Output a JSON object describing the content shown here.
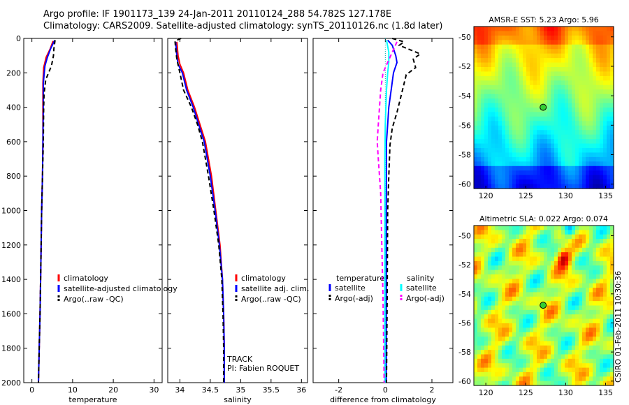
{
  "header": {
    "line1": "Argo profile: IF 1901173_139 24-Jan-2011 20110124_288 54.782S 127.178E",
    "line2": "Climatology: CARS2009. Satellite-adjusted climatology: synTS_20110126.nc (1.8d later)"
  },
  "side_text": "CSIRO 01-Feb-2011 10:30:36",
  "chart_data": [
    {
      "type": "line",
      "xlabel": "temperature",
      "xlim": [
        -2,
        32
      ],
      "xticks": [
        0,
        10,
        20,
        30
      ],
      "ylim": [
        2000,
        0
      ],
      "yticks": [
        0,
        200,
        400,
        600,
        800,
        1000,
        1200,
        1400,
        1600,
        1800,
        2000
      ],
      "legend": [
        {
          "label": "climatology",
          "color": "#ff0000"
        },
        {
          "label": "satellite-adjusted climatology",
          "color": "#0000ff"
        },
        {
          "label": "Argo(..raw -QC)",
          "color": "#000000"
        }
      ],
      "series": [
        {
          "id": "clim",
          "color": "#ff0000",
          "dash": "",
          "points": [
            [
              5.2,
              15
            ],
            [
              4.5,
              60
            ],
            [
              3.5,
              110
            ],
            [
              2.9,
              170
            ],
            [
              2.7,
              260
            ],
            [
              2.7,
              400
            ],
            [
              2.7,
              600
            ],
            [
              2.6,
              800
            ],
            [
              2.4,
              1000
            ],
            [
              2.2,
              1300
            ],
            [
              2.0,
              1600
            ],
            [
              1.8,
              1800
            ],
            [
              1.6,
              2000
            ]
          ]
        },
        {
          "id": "sat",
          "color": "#0000ff",
          "dash": "",
          "points": [
            [
              5.6,
              10
            ],
            [
              4.6,
              60
            ],
            [
              3.8,
              110
            ],
            [
              3.2,
              160
            ],
            [
              2.8,
              260
            ],
            [
              2.8,
              400
            ],
            [
              2.7,
              600
            ],
            [
              2.6,
              800
            ],
            [
              2.4,
              1000
            ],
            [
              2.2,
              1300
            ],
            [
              2.0,
              1600
            ],
            [
              1.8,
              1800
            ],
            [
              1.6,
              2000
            ]
          ]
        },
        {
          "id": "argo",
          "color": "#000000",
          "dash": "6,4",
          "points": [
            [
              5.7,
              10
            ],
            [
              5.4,
              60
            ],
            [
              5.3,
              100
            ],
            [
              4.8,
              160
            ],
            [
              3.4,
              240
            ],
            [
              3.0,
              320
            ],
            [
              2.9,
              400
            ],
            [
              2.8,
              600
            ],
            [
              2.6,
              800
            ],
            [
              2.4,
              1000
            ],
            [
              2.2,
              1300
            ],
            [
              2.0,
              1600
            ],
            [
              1.8,
              1800
            ],
            [
              1.6,
              2000
            ]
          ]
        }
      ]
    },
    {
      "type": "line",
      "xlabel": "salinity",
      "xlim": [
        33.8,
        36.1
      ],
      "xticks": [
        34,
        34.5,
        35,
        35.5,
        36
      ],
      "ylim": [
        2000,
        0
      ],
      "legend": [
        {
          "label": "climatology",
          "color": "#ff0000"
        },
        {
          "label": "satellite adj. clim.",
          "color": "#0000ff"
        },
        {
          "label": "Argo(..raw -QC)",
          "color": "#000000"
        }
      ],
      "annotations": [
        "TRACK",
        "PI: Fabien ROQUET"
      ],
      "series": [
        {
          "id": "clim",
          "color": "#ff0000",
          "dash": "",
          "points": [
            [
              33.95,
              20
            ],
            [
              33.97,
              100
            ],
            [
              34.0,
              150
            ],
            [
              34.06,
              200
            ],
            [
              34.13,
              300
            ],
            [
              34.24,
              400
            ],
            [
              34.33,
              500
            ],
            [
              34.42,
              600
            ],
            [
              34.52,
              800
            ],
            [
              34.59,
              1000
            ],
            [
              34.66,
              1200
            ],
            [
              34.7,
              1400
            ],
            [
              34.72,
              1600
            ],
            [
              34.73,
              1800
            ],
            [
              34.73,
              2000
            ]
          ]
        },
        {
          "id": "sat",
          "color": "#0000ff",
          "dash": "",
          "points": [
            [
              33.93,
              20
            ],
            [
              33.95,
              100
            ],
            [
              33.97,
              150
            ],
            [
              34.04,
              200
            ],
            [
              34.11,
              300
            ],
            [
              34.22,
              400
            ],
            [
              34.31,
              500
            ],
            [
              34.4,
              600
            ],
            [
              34.5,
              800
            ],
            [
              34.58,
              1000
            ],
            [
              34.65,
              1200
            ],
            [
              34.7,
              1400
            ],
            [
              34.72,
              1600
            ],
            [
              34.73,
              1800
            ],
            [
              34.73,
              2000
            ]
          ]
        },
        {
          "id": "argo",
          "color": "#000000",
          "dash": "6,4",
          "points": [
            [
              34.02,
              0
            ],
            [
              33.92,
              15
            ],
            [
              33.93,
              60
            ],
            [
              33.95,
              120
            ],
            [
              34.0,
              200
            ],
            [
              34.06,
              300
            ],
            [
              34.19,
              400
            ],
            [
              34.29,
              500
            ],
            [
              34.37,
              600
            ],
            [
              34.47,
              800
            ],
            [
              34.56,
              1000
            ],
            [
              34.64,
              1200
            ],
            [
              34.69,
              1400
            ],
            [
              34.71,
              1600
            ],
            [
              34.72,
              1800
            ],
            [
              34.72,
              2000
            ]
          ]
        }
      ]
    },
    {
      "type": "line",
      "xlabel": "difference from climatology",
      "xlim": [
        -3.1,
        2.9
      ],
      "xticks": [
        -2,
        0,
        2
      ],
      "ylim": [
        2000,
        0
      ],
      "legend": [
        {
          "label": "temperature",
          "color": "",
          "dash": ""
        },
        {
          "label": "satellite",
          "color": "#0000ff",
          "dash": ""
        },
        {
          "label": "Argo(-adj)",
          "color": "#000000",
          "dash": "dash"
        },
        {
          "label": "salinity",
          "color": "",
          "dash": ""
        },
        {
          "label": "satellite",
          "color": "#00ffff",
          "dash": ""
        },
        {
          "label": "Argo(-adj)",
          "color": "#ff00ff",
          "dash": "dash"
        }
      ],
      "series": [
        {
          "id": "t_sat",
          "color": "#0000ff",
          "dash": "",
          "points": [
            [
              0.1,
              10
            ],
            [
              0.3,
              40
            ],
            [
              0.45,
              100
            ],
            [
              0.5,
              140
            ],
            [
              0.35,
              200
            ],
            [
              0.25,
              300
            ],
            [
              0.15,
              400
            ],
            [
              0.1,
              500
            ],
            [
              0.05,
              600
            ],
            [
              0.05,
              800
            ],
            [
              0.04,
              1000
            ],
            [
              0.04,
              1500
            ],
            [
              0.04,
              2000
            ]
          ]
        },
        {
          "id": "s_sat",
          "color": "#00ffff",
          "dash": "",
          "points": [
            [
              0.05,
              10
            ],
            [
              0.15,
              80
            ],
            [
              0.15,
              140
            ],
            [
              0.1,
              200
            ],
            [
              0.05,
              300
            ],
            [
              0.0,
              500
            ],
            [
              -0.02,
              700
            ],
            [
              -0.02,
              1000
            ],
            [
              -0.02,
              1500
            ],
            [
              -0.02,
              2000
            ]
          ]
        },
        {
          "id": "t_argo",
          "color": "#000000",
          "dash": "6,4",
          "points": [
            [
              0.3,
              0
            ],
            [
              0.8,
              20
            ],
            [
              0.6,
              40
            ],
            [
              1.5,
              90
            ],
            [
              1.2,
              120
            ],
            [
              1.3,
              170
            ],
            [
              0.9,
              210
            ],
            [
              0.7,
              320
            ],
            [
              0.5,
              430
            ],
            [
              0.3,
              520
            ],
            [
              0.2,
              620
            ],
            [
              0.15,
              800
            ],
            [
              0.1,
              1000
            ],
            [
              0.08,
              1500
            ],
            [
              0.05,
              2000
            ]
          ]
        },
        {
          "id": "s_argo",
          "color": "#ff00ff",
          "dash": "6,4",
          "points": [
            [
              0.5,
              20
            ],
            [
              0.3,
              80
            ],
            [
              -0.1,
              200
            ],
            [
              -0.2,
              300
            ],
            [
              -0.25,
              400
            ],
            [
              -0.3,
              500
            ],
            [
              -0.35,
              600
            ],
            [
              -0.3,
              700
            ],
            [
              -0.2,
              900
            ],
            [
              -0.15,
              1200
            ],
            [
              -0.1,
              1500
            ],
            [
              -0.05,
              2000
            ]
          ]
        }
      ]
    },
    {
      "type": "heatmap",
      "title": "AMSR-E SST: 5.23 Argo: 5.96",
      "xlim": [
        118.5,
        136
      ],
      "ylim": [
        -60.3,
        -49.3
      ],
      "xticks": [
        120,
        125,
        130,
        135
      ],
      "yticks": [
        -50,
        -52,
        -54,
        -56,
        -58,
        -60
      ],
      "marker": {
        "x": 127.178,
        "y": -54.782
      }
    },
    {
      "type": "heatmap",
      "title": "Altimetric SLA: 0.022 Argo: 0.074",
      "xlim": [
        118.5,
        136
      ],
      "ylim": [
        -60.3,
        -49.3
      ],
      "xticks": [
        120,
        125,
        130,
        135
      ],
      "yticks": [
        -50,
        -52,
        -54,
        -56,
        -58,
        -60
      ],
      "marker": {
        "x": 127.178,
        "y": -54.782
      }
    }
  ]
}
